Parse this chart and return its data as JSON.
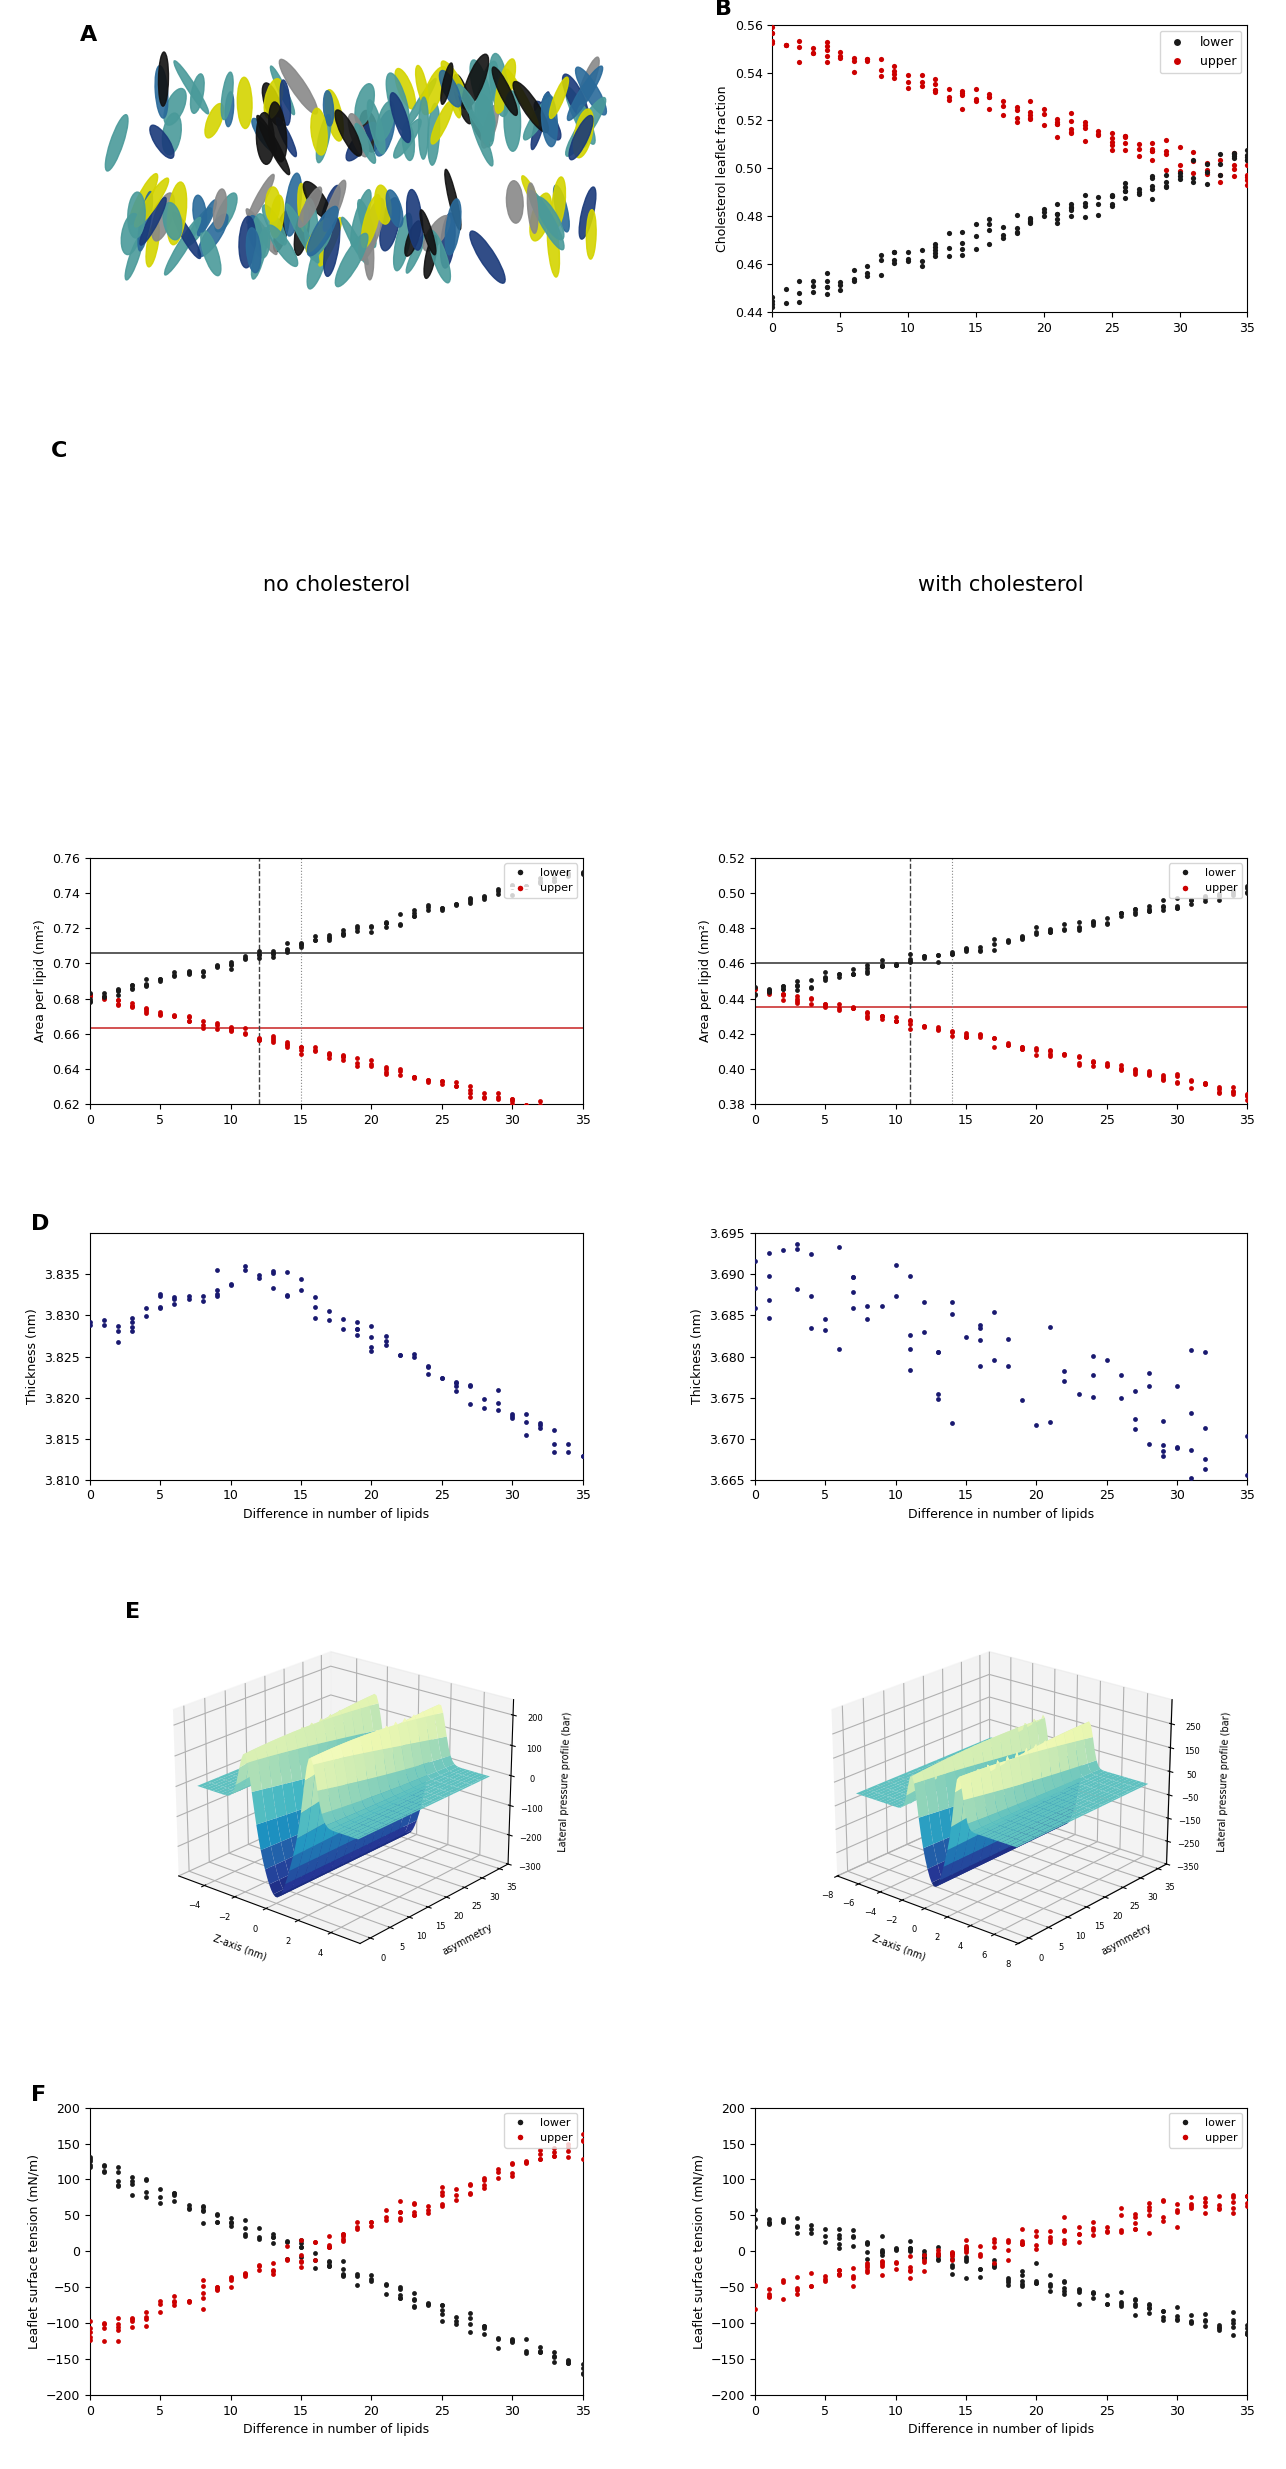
{
  "B": {
    "ylabel": "Cholesterol leaflet fraction",
    "ylim": [
      0.44,
      0.56
    ],
    "yticks": [
      0.44,
      0.46,
      0.48,
      0.5,
      0.52,
      0.54,
      0.56
    ],
    "xlim": [
      0,
      35
    ],
    "xticks": [
      0,
      5,
      10,
      15,
      20,
      25,
      30,
      35
    ]
  },
  "C_nochol": {
    "title": "no cholesterol",
    "hline_black": 0.706,
    "hline_red": 0.663,
    "vline_dashed": 12,
    "vline_dotted": 15,
    "ylabel": "Area per lipid (nm²)",
    "ylim": [
      0.62,
      0.76
    ],
    "yticks": [
      0.62,
      0.64,
      0.66,
      0.68,
      0.7,
      0.72,
      0.74,
      0.76
    ],
    "xlim": [
      0,
      35
    ],
    "xticks": [
      0,
      5,
      10,
      15,
      20,
      25,
      30,
      35
    ]
  },
  "C_withchol": {
    "title": "with cholesterol",
    "hline_black": 0.46,
    "hline_red": 0.435,
    "vline_dashed": 11,
    "vline_dotted": 14,
    "ylabel": "Area per lipid (nm²)",
    "ylim": [
      0.38,
      0.52
    ],
    "yticks": [
      0.38,
      0.4,
      0.42,
      0.44,
      0.46,
      0.48,
      0.5,
      0.52
    ],
    "xlim": [
      0,
      35
    ],
    "xticks": [
      0,
      5,
      10,
      15,
      20,
      25,
      30,
      35
    ]
  },
  "D_nochol": {
    "ylabel": "Thickness (nm)",
    "ylim": [
      3.81,
      3.84
    ],
    "yticks": [
      3.81,
      3.815,
      3.82,
      3.825,
      3.83,
      3.835
    ],
    "xlabel": "Difference in number of lipids",
    "xlim": [
      0,
      35
    ],
    "xticks": [
      0,
      5,
      10,
      15,
      20,
      25,
      30,
      35
    ]
  },
  "D_withchol": {
    "ylabel": "Thickness (nm)",
    "ylim": [
      3.665,
      3.695
    ],
    "yticks": [
      3.665,
      3.67,
      3.675,
      3.68,
      3.685,
      3.69,
      3.695
    ],
    "xlabel": "Difference in number of lipids",
    "xlim": [
      0,
      35
    ],
    "xticks": [
      0,
      5,
      10,
      15,
      20,
      25,
      30,
      35
    ]
  },
  "F_nochol": {
    "ylabel": "Leaflet surface tension (mN/m)",
    "ylim": [
      -200,
      200
    ],
    "yticks": [
      -200,
      -150,
      -100,
      -50,
      0,
      50,
      100,
      150,
      200
    ],
    "xlabel": "Difference in number of lipids",
    "xlim": [
      0,
      35
    ],
    "xticks": [
      0,
      5,
      10,
      15,
      20,
      25,
      30,
      35
    ]
  },
  "F_withchol": {
    "ylabel": "Leaflet surface tension (mN/m)",
    "ylim": [
      -200,
      200
    ],
    "yticks": [
      -200,
      -150,
      -100,
      -50,
      0,
      50,
      100,
      150,
      200
    ],
    "xlabel": "Difference in number of lipids",
    "xlim": [
      0,
      35
    ],
    "xticks": [
      0,
      5,
      10,
      15,
      20,
      25,
      30,
      35
    ]
  },
  "colors": {
    "black": "#1a1a1a",
    "red": "#cc0000",
    "blue": "#191970"
  }
}
